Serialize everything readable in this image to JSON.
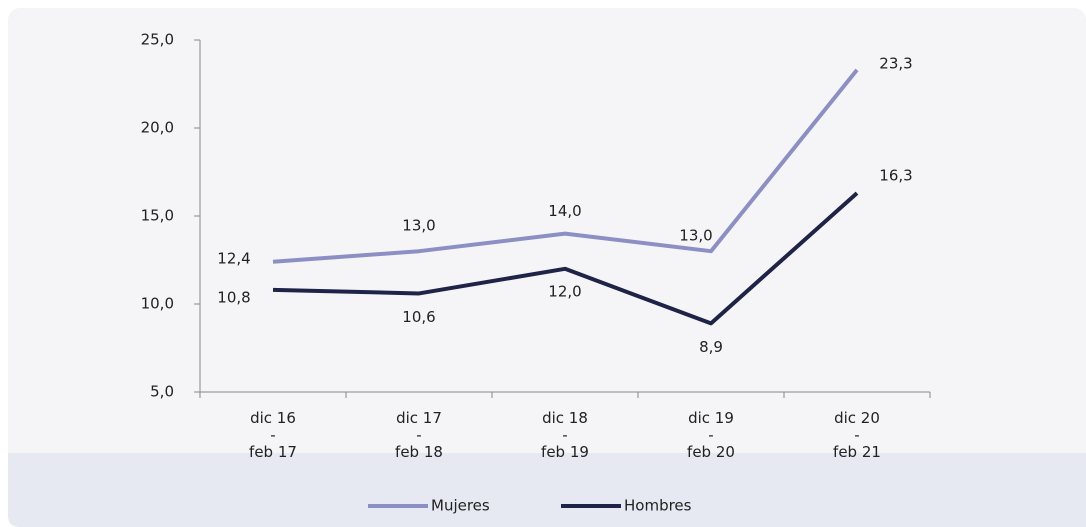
{
  "chart_data": {
    "type": "line",
    "categories": [
      "dic 16\n-\nfeb 17",
      "dic 17\n-\nfeb 18",
      "dic 18\n-\nfeb 19",
      "dic 19\n-\nfeb 20",
      "dic 20\n-\nfeb 21"
    ],
    "series": [
      {
        "name": "Mujeres",
        "color": "#8b8fc4",
        "values": [
          12.4,
          13.0,
          14.0,
          13.0,
          23.3
        ],
        "value_labels": [
          "12,4",
          "13,0",
          "14,0",
          "13,0",
          "23,3"
        ]
      },
      {
        "name": "Hombres",
        "color": "#1e2347",
        "values": [
          10.8,
          10.6,
          12.0,
          8.9,
          16.3
        ],
        "value_labels": [
          "10,8",
          "10,6",
          "12,0",
          "8,9",
          "16,3"
        ]
      }
    ],
    "ylim": [
      5,
      25
    ],
    "yticks": [
      {
        "value": 5,
        "label": "5,0"
      },
      {
        "value": 10,
        "label": "10,0"
      },
      {
        "value": 15,
        "label": "15,0"
      },
      {
        "value": 20,
        "label": "20,0"
      },
      {
        "value": 25,
        "label": "25,0"
      }
    ],
    "legend": "bottom"
  }
}
